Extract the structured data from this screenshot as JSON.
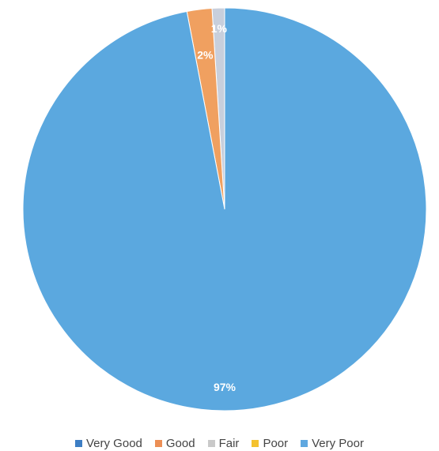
{
  "chart_data": {
    "type": "pie",
    "title": "",
    "start_angle_deg": 0,
    "direction": "clockwise",
    "legend_position": "bottom",
    "slices": [
      {
        "label": "Very Good",
        "value": 97,
        "display": "97%",
        "color": "#5ba8df"
      },
      {
        "label": "Good",
        "value": 2,
        "display": "2%",
        "color": "#f0a060"
      },
      {
        "label": "Fair",
        "value": 1,
        "display": "1%",
        "color": "#c8cfdc"
      },
      {
        "label": "Poor",
        "value": 0,
        "display": "",
        "color": "#f5c242"
      },
      {
        "label": "Very Poor",
        "value": 0,
        "display": "",
        "color": "#7fb7e8"
      }
    ],
    "legend": [
      {
        "label": "Very Good",
        "color": "#3d7ec4"
      },
      {
        "label": "Good",
        "color": "#ec8f55"
      },
      {
        "label": "Fair",
        "color": "#c9c9c9"
      },
      {
        "label": "Poor",
        "color": "#f4c22f"
      },
      {
        "label": "Very Poor",
        "color": "#5fa8e0"
      }
    ]
  }
}
